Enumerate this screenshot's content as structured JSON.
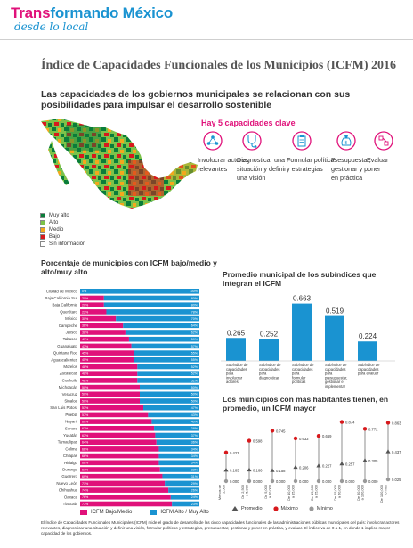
{
  "header": {
    "brand_part1": "Trans",
    "brand_part2": "formando México",
    "brand_sub": "desde lo local"
  },
  "title": "Índice de Capacidades Funcionales de los Municipios (ICFM) 2016",
  "subtitle": "Las capacidades de los gobiernos municipales se relacionan con sus posibilidades para impulsar el desarrollo sostenible",
  "map_legend": [
    {
      "label": "Muy alto",
      "color": "#0a7d3a"
    },
    {
      "label": "Alto",
      "color": "#7cc24a"
    },
    {
      "label": "Medio",
      "color": "#f2a81d"
    },
    {
      "label": "Bajo",
      "color": "#d7191c"
    },
    {
      "label": "Sin información",
      "color": "#ffffff"
    }
  ],
  "capacities": {
    "title": "Hay 5 capacidades clave",
    "items": [
      {
        "label": "Involucrar actores relevantes",
        "icon": "people-network-icon"
      },
      {
        "label": "Diagnosticar una situación y definir una visión",
        "icon": "stethoscope-icon"
      },
      {
        "label": "Formular políticas y estrategias",
        "icon": "clipboard-icon"
      },
      {
        "label": "Presupuestar, gestionar y poner en práctica",
        "icon": "money-bag-icon"
      },
      {
        "label": "Evaluar",
        "icon": "evaluation-network-icon"
      }
    ]
  },
  "colors": {
    "pink": "#e0117a",
    "blue": "#1a93d1",
    "dark_green": "#0a7d3a",
    "light_green": "#7cc24a",
    "orange": "#f2a81d",
    "red": "#d7191c"
  },
  "chart_data": [
    {
      "type": "bar",
      "orientation": "horizontal-stacked-100",
      "title": "Porcentaje de municipios con ICFM bajo/medio y alto/muy alto",
      "categories": [
        "Ciudad de México",
        "Baja California Sur",
        "Baja California",
        "Querétaro",
        "México",
        "Campeche",
        "Jalisco",
        "Tabasco",
        "Guanajuato",
        "Quintana Roo",
        "Aguascalientes",
        "Morelos",
        "Zacatecas",
        "Coahuila",
        "Michoacán",
        "Veracruz",
        "Sinaloa",
        "San Luis Potosí",
        "Puebla",
        "Nayarit",
        "Sonora",
        "Yucatán",
        "Tamaulipas",
        "Colima",
        "Chiapas",
        "Hidalgo",
        "Durango",
        "Guerrero",
        "Nuevo León",
        "Chihuahua",
        "Oaxaca",
        "Tlaxcala"
      ],
      "series": [
        {
          "name": "ICFM Bajo/Medio",
          "values": [
            0,
            20,
            20,
            22,
            30,
            36,
            38,
            41,
            43,
            45,
            45,
            48,
            48,
            48,
            50,
            50,
            50,
            53,
            57,
            60,
            62,
            63,
            64,
            66,
            66,
            66,
            67,
            69,
            71,
            74,
            76,
            77
          ]
        },
        {
          "name": "ICFM Alto / Muy Alto",
          "values": [
            100,
            80,
            80,
            78,
            70,
            64,
            62,
            59,
            57,
            55,
            55,
            52,
            52,
            52,
            50,
            50,
            50,
            47,
            43,
            40,
            38,
            37,
            36,
            34,
            34,
            34,
            33,
            31,
            29,
            26,
            24,
            23
          ]
        }
      ],
      "xlim": [
        0,
        100
      ]
    },
    {
      "type": "bar",
      "title": "Promedio municipal de los subíndices que integran el ICFM",
      "categories": [
        "Subíndice de capacidades para involucrar actores",
        "Subíndice de capacidades para diagnosticar",
        "Subíndice de capacidades para formular políticas",
        "Subíndice de capacidades para presupuestar, gestionar e implementar",
        "Subíndice de capacidades para evaluar"
      ],
      "values": [
        0.265,
        0.252,
        0.663,
        0.519,
        0.224
      ],
      "labels": [
        "0.265",
        "0.252",
        "0.663",
        "0.519",
        "0.224"
      ],
      "ylim": [
        0,
        0.7
      ]
    },
    {
      "type": "scatter",
      "subtype": "range-min-avg-max",
      "title": "Los municipios con más habitantes tienen, en promedio, un ICFM mayor",
      "categories": [
        "Menos de 2,500",
        "De 2,500 a 5,000",
        "De 5,000 a 10,000",
        "De 10,000 a 15,000",
        "De 15,000 a 25,000",
        "De 25,000 a 50,000",
        "De 50,000 a 100,000",
        "De 100,000 o más"
      ],
      "series": [
        {
          "name": "Promedio",
          "values": [
            0.163,
            0.166,
            0.158,
            0.206,
            0.227,
            0.257,
            0.305,
            0.437
          ]
        },
        {
          "name": "Máximo",
          "values": [
            0.423,
            0.598,
            0.745,
            0.633,
            0.669,
            0.874,
            0.772,
            0.863
          ]
        },
        {
          "name": "Mínimo",
          "values": [
            0.0,
            0.0,
            0.0,
            0.0,
            0.0,
            0.0,
            0.0,
            0.025
          ]
        }
      ],
      "point_labels": {
        "Promedio": [
          "0.163",
          "0.166",
          "0.158",
          "0.206",
          "0.227",
          "0.257",
          "0.305",
          "0.437"
        ],
        "Máximo": [
          "0.423",
          "0.598",
          "0.745",
          "0.633",
          "0.669",
          "0.874",
          "0.772",
          "0.863"
        ],
        "Mínimo": [
          "0.000",
          "0.000",
          "0.000",
          "0.000",
          "0.000",
          "0.000",
          "0.000",
          "0.025"
        ]
      },
      "ylim": [
        0,
        1
      ]
    }
  ],
  "footnote": "El Índice de Capacidades Funcionales Municipales (ICFM) mide el grado de desarrollo de las cinco capacidades funcionales de las administraciones públicas municipales del país: involucrar actores relevantes, diagnosticar una situación y definir una visión, formular políticas y estrategias, presupuestar, gestionar y poner en práctica, y evaluar. El índice va de 0 a 1, en donde 1 implica mayor capacidad de los gobiernos."
}
